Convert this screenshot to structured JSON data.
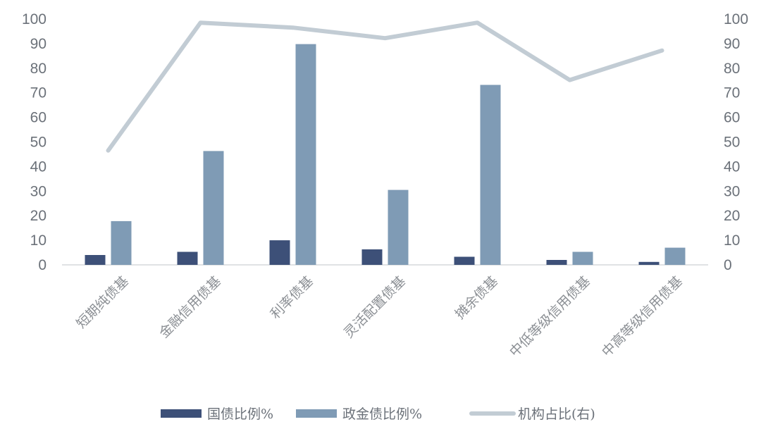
{
  "chart_data": {
    "type": "bar",
    "title": "",
    "categories": [
      "短期纯债基",
      "金融信用债基",
      "利率债基",
      "灵活配置债基",
      "摊余债基",
      "中低等级信用债基",
      "中高等级信用债基"
    ],
    "series": [
      {
        "name": "国债比例%",
        "type": "bar",
        "axis": "left",
        "color": "#3d5078",
        "values": [
          4,
          5.3,
          10,
          6.3,
          3.3,
          2,
          1.2
        ]
      },
      {
        "name": "政金债比例%",
        "type": "bar",
        "axis": "left",
        "color": "#7f9bb5",
        "values": [
          17.8,
          46.3,
          89.8,
          30.5,
          73.2,
          5.3,
          7
        ]
      },
      {
        "name": "机构占比(右)",
        "type": "line",
        "axis": "right",
        "color": "#c2ccd4",
        "values": [
          46.5,
          98.5,
          96.5,
          92.2,
          98.5,
          75.2,
          87.2
        ]
      }
    ],
    "ylim_left": [
      0,
      100
    ],
    "ylim_right": [
      0,
      100
    ],
    "yticks": [
      0,
      10,
      20,
      30,
      40,
      50,
      60,
      70,
      80,
      90,
      100
    ],
    "legend_position": "bottom",
    "grid": false
  }
}
